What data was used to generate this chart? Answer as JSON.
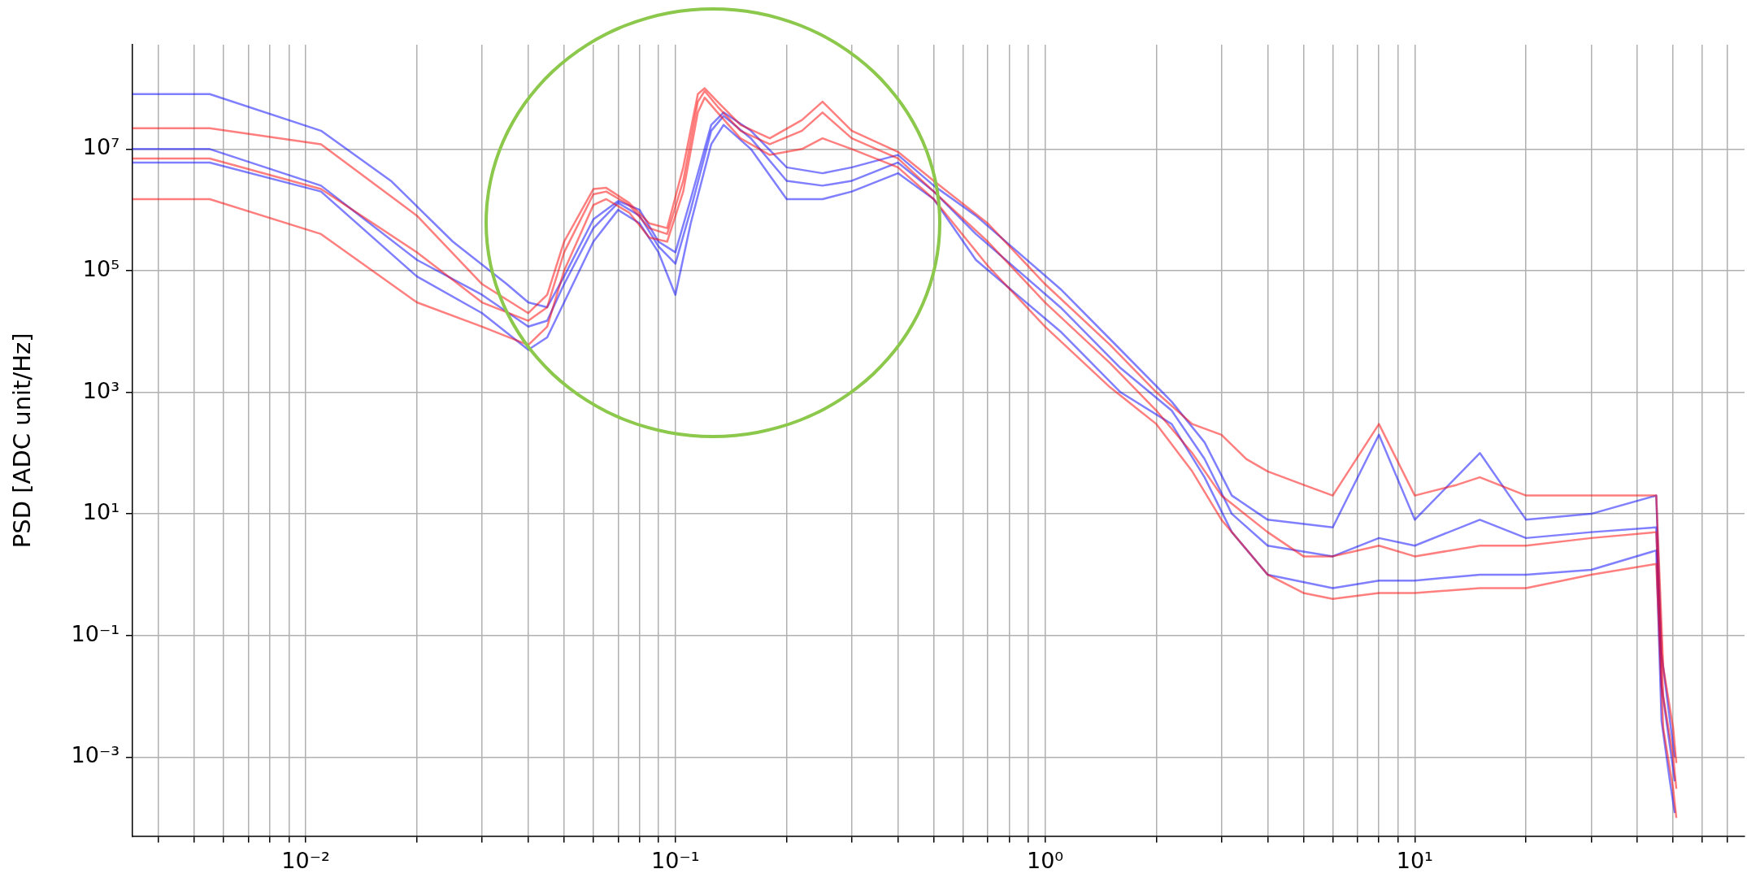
{
  "chart_data": {
    "type": "line",
    "ylabel": "PSD [ADC unit/Hz]",
    "log": "xy",
    "grid": true,
    "legend": false,
    "marker": "none",
    "line_style": "solid",
    "xlim": [
      0.0034,
      78
    ],
    "ylim": [
      5e-05,
      520000000
    ],
    "xticks": [
      {
        "value": 0.004,
        "label": null
      },
      {
        "value": 0.005,
        "label": null
      },
      {
        "value": 0.006,
        "label": null
      },
      {
        "value": 0.007,
        "label": null
      },
      {
        "value": 0.008,
        "label": null
      },
      {
        "value": 0.009,
        "label": null
      },
      {
        "value": 0.01,
        "label": "10⁻²"
      },
      {
        "value": 0.02,
        "label": null
      },
      {
        "value": 0.03,
        "label": null
      },
      {
        "value": 0.04,
        "label": null
      },
      {
        "value": 0.05,
        "label": null
      },
      {
        "value": 0.06,
        "label": null
      },
      {
        "value": 0.07,
        "label": null
      },
      {
        "value": 0.08,
        "label": null
      },
      {
        "value": 0.09,
        "label": null
      },
      {
        "value": 0.1,
        "label": "10⁻¹"
      },
      {
        "value": 0.2,
        "label": null
      },
      {
        "value": 0.3,
        "label": null
      },
      {
        "value": 0.4,
        "label": null
      },
      {
        "value": 0.5,
        "label": null
      },
      {
        "value": 0.6,
        "label": null
      },
      {
        "value": 0.7,
        "label": null
      },
      {
        "value": 0.8,
        "label": null
      },
      {
        "value": 0.9,
        "label": null
      },
      {
        "value": 1,
        "label": "10⁰"
      },
      {
        "value": 2,
        "label": null
      },
      {
        "value": 3,
        "label": null
      },
      {
        "value": 4,
        "label": null
      },
      {
        "value": 5,
        "label": null
      },
      {
        "value": 6,
        "label": null
      },
      {
        "value": 7,
        "label": null
      },
      {
        "value": 8,
        "label": null
      },
      {
        "value": 9,
        "label": null
      },
      {
        "value": 10,
        "label": "10¹"
      },
      {
        "value": 20,
        "label": null
      },
      {
        "value": 30,
        "label": null
      },
      {
        "value": 40,
        "label": null
      },
      {
        "value": 50,
        "label": null
      },
      {
        "value": 60,
        "label": null
      },
      {
        "value": 70,
        "label": null
      }
    ],
    "yticks": [
      {
        "value": 0.001,
        "label": "10⁻³"
      },
      {
        "value": 0.1,
        "label": "10⁻¹"
      },
      {
        "value": 10,
        "label": "10¹"
      },
      {
        "value": 1000,
        "label": "10³"
      },
      {
        "value": 100000,
        "label": "10⁵"
      },
      {
        "value": 10000000,
        "label": "10⁷"
      }
    ],
    "series": [
      {
        "color": "#ff0000",
        "x": [
          0.0034,
          0.0055,
          0.011,
          0.02,
          0.03,
          0.04,
          0.045,
          0.05,
          0.06,
          0.065,
          0.075,
          0.085,
          0.095,
          0.105,
          0.115,
          0.12,
          0.13,
          0.15,
          0.18,
          0.22,
          0.25,
          0.3,
          0.4,
          0.5,
          0.7,
          1,
          1.5,
          2,
          2.5,
          3,
          3.5,
          4,
          5,
          6,
          8,
          10,
          13,
          15,
          20,
          30,
          45,
          47,
          50,
          51
        ],
        "values": [
          22000000,
          22000000,
          12000000,
          800000,
          60000,
          20000,
          40000,
          300000,
          2200000,
          2300000,
          1300000,
          600000,
          500000,
          5000000,
          80000000,
          100000000,
          60000000,
          25000000,
          15000000,
          30000000,
          60000000,
          20000000,
          9000000,
          3000000,
          600000,
          60000,
          6000,
          1000,
          300,
          200,
          80,
          50,
          30,
          20,
          300,
          20,
          30,
          40,
          20,
          20,
          20,
          0.03,
          0.003,
          0.0008
        ]
      },
      {
        "color": "#ff0000",
        "x": [
          0.0034,
          0.0055,
          0.011,
          0.02,
          0.03,
          0.04,
          0.045,
          0.05,
          0.06,
          0.065,
          0.075,
          0.085,
          0.095,
          0.105,
          0.115,
          0.12,
          0.13,
          0.15,
          0.18,
          0.22,
          0.25,
          0.3,
          0.4,
          0.5,
          0.7,
          1,
          1.5,
          2,
          2.5,
          3,
          4,
          5,
          6,
          8,
          10,
          15,
          20,
          30,
          45,
          47,
          50,
          51
        ],
        "values": [
          7000000,
          7000000,
          2200000,
          200000,
          30000,
          15000,
          25000,
          200000,
          1800000,
          2000000,
          1200000,
          500000,
          400000,
          3000000,
          60000000,
          90000000,
          50000000,
          20000000,
          12000000,
          20000000,
          40000000,
          15000000,
          7000000,
          2000000,
          300000,
          30000,
          3000,
          500,
          100,
          20,
          5,
          2,
          2,
          3,
          2,
          3,
          3,
          4,
          5,
          0.01,
          0.001,
          0.0003
        ]
      },
      {
        "color": "#ff0000",
        "x": [
          0.0034,
          0.0055,
          0.011,
          0.02,
          0.03,
          0.04,
          0.045,
          0.05,
          0.06,
          0.065,
          0.075,
          0.085,
          0.095,
          0.105,
          0.115,
          0.12,
          0.13,
          0.15,
          0.18,
          0.22,
          0.25,
          0.3,
          0.4,
          0.5,
          0.7,
          1,
          1.5,
          2,
          2.5,
          3,
          4,
          5,
          6,
          8,
          10,
          15,
          20,
          30,
          45,
          47,
          50,
          51
        ],
        "values": [
          1500000,
          1500000,
          400000,
          30000,
          12000,
          6000,
          12000,
          100000,
          1200000,
          1500000,
          900000,
          350000,
          300000,
          2000000,
          40000000,
          70000000,
          40000000,
          15000000,
          8000000,
          10000000,
          15000000,
          10000000,
          5000000,
          1500000,
          120000,
          12000,
          1200,
          300,
          50,
          8,
          1,
          0.5,
          0.4,
          0.5,
          0.5,
          0.6,
          0.6,
          1,
          1.5,
          0.003,
          0.0003,
          0.0001
        ]
      },
      {
        "color": "#0000ff",
        "x": [
          0.0034,
          0.0055,
          0.011,
          0.017,
          0.025,
          0.035,
          0.04,
          0.045,
          0.05,
          0.06,
          0.07,
          0.08,
          0.09,
          0.1,
          0.11,
          0.125,
          0.135,
          0.16,
          0.2,
          0.25,
          0.3,
          0.4,
          0.5,
          0.65,
          1.1,
          1.6,
          2.2,
          2.7,
          3.2,
          4,
          6,
          8,
          10,
          15,
          20,
          30,
          45,
          46.5,
          49,
          50.5
        ],
        "values": [
          80000000,
          80000000,
          20000000,
          3000000,
          300000,
          60000,
          30000,
          25000,
          80000,
          700000,
          1400000,
          1000000,
          300000,
          200000,
          1500000,
          25000000,
          40000000,
          20000000,
          5000000,
          4000000,
          5000000,
          8000000,
          2500000,
          800000,
          50000,
          5000,
          700,
          150,
          20,
          8,
          6,
          200,
          8,
          100,
          8,
          10,
          20,
          0.05,
          0.004,
          0.001
        ]
      },
      {
        "color": "#0000ff",
        "x": [
          0.0034,
          0.0055,
          0.011,
          0.02,
          0.03,
          0.04,
          0.045,
          0.05,
          0.06,
          0.07,
          0.08,
          0.09,
          0.1,
          0.11,
          0.125,
          0.135,
          0.16,
          0.2,
          0.25,
          0.3,
          0.4,
          0.5,
          0.65,
          1.1,
          1.6,
          2.2,
          2.7,
          3.2,
          4,
          6,
          8,
          10,
          15,
          20,
          30,
          45,
          46.5,
          49,
          50.5
        ],
        "values": [
          10000000,
          10000000,
          2500000,
          150000,
          40000,
          12000,
          15000,
          60000,
          500000,
          1300000,
          800000,
          250000,
          130000,
          1000000,
          20000000,
          35000000,
          15000000,
          3000000,
          2500000,
          3000000,
          6000000,
          2000000,
          400000,
          25000,
          2500,
          500,
          80,
          10,
          3,
          2,
          4,
          3,
          8,
          4,
          5,
          6,
          0.015,
          0.0015,
          0.0004
        ]
      },
      {
        "color": "#0000ff",
        "x": [
          0.0034,
          0.0055,
          0.011,
          0.02,
          0.03,
          0.04,
          0.045,
          0.05,
          0.06,
          0.07,
          0.08,
          0.09,
          0.1,
          0.11,
          0.125,
          0.135,
          0.16,
          0.2,
          0.25,
          0.3,
          0.4,
          0.5,
          0.65,
          1.1,
          1.6,
          2.2,
          2.7,
          3.2,
          4,
          6,
          8,
          10,
          15,
          20,
          30,
          45,
          46.5,
          49,
          50.5
        ],
        "values": [
          6000000,
          6000000,
          2000000,
          80000,
          20000,
          5000,
          8000,
          30000,
          300000,
          1000000,
          600000,
          200000,
          40000,
          600000,
          12000000,
          25000000,
          10000000,
          1500000,
          1500000,
          2000000,
          4000000,
          1500000,
          150000,
          10000,
          1000,
          300,
          40,
          5,
          1,
          0.6,
          0.8,
          0.8,
          1,
          1,
          1.2,
          2.5,
          0.004,
          0.0004,
          0.00012
        ]
      }
    ]
  }
}
